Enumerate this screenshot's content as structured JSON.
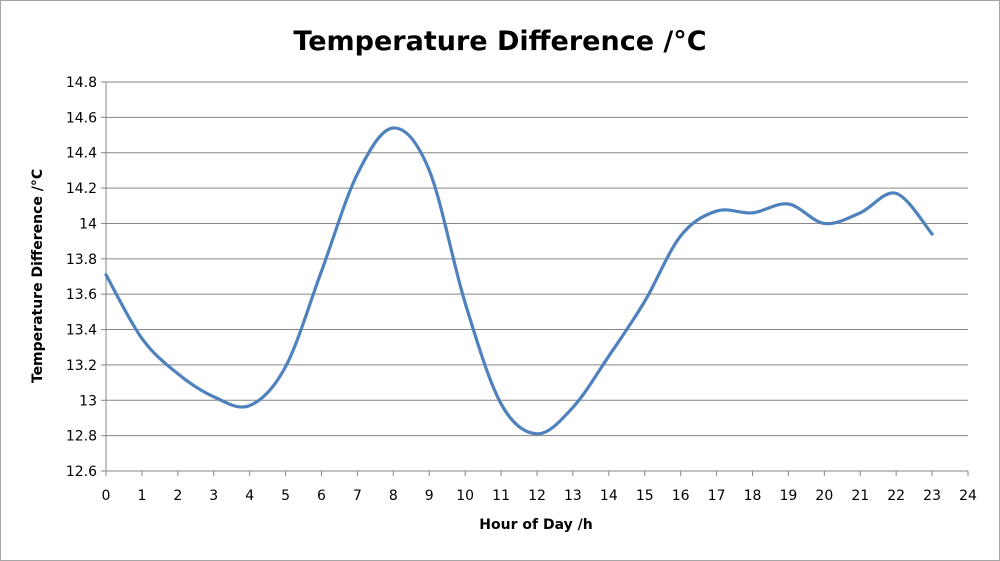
{
  "chart_data": {
    "type": "line",
    "title": "Temperature Difference /°C",
    "xlabel": "Hour of Day /h",
    "ylabel": "Temperature Difference /°C",
    "xlim": [
      0,
      24
    ],
    "ylim": [
      12.6,
      14.8
    ],
    "x_ticks": [
      "0",
      "1",
      "2",
      "3",
      "4",
      "5",
      "6",
      "7",
      "8",
      "9",
      "10",
      "11",
      "12",
      "13",
      "14",
      "15",
      "16",
      "17",
      "18",
      "19",
      "20",
      "21",
      "22",
      "23",
      "24"
    ],
    "y_ticks": [
      "12.6",
      "12.8",
      "13",
      "13.2",
      "13.4",
      "13.6",
      "13.8",
      "14",
      "14.2",
      "14.4",
      "14.6",
      "14.8"
    ],
    "grid": true,
    "legend": false,
    "smooth": true,
    "series_color": "#4f81bd",
    "grid_color": "#868686",
    "series": [
      {
        "x": [
          0,
          1,
          2,
          3,
          4,
          5,
          6,
          7,
          8,
          9,
          10,
          11,
          12,
          13,
          14,
          15,
          16,
          17,
          18,
          19,
          20,
          21,
          22,
          23
        ],
        "values": [
          13.71,
          13.35,
          13.15,
          13.02,
          12.97,
          13.19,
          13.73,
          14.28,
          14.54,
          14.3,
          13.55,
          12.98,
          12.81,
          12.96,
          13.25,
          13.56,
          13.93,
          14.07,
          14.06,
          14.11,
          14.0,
          14.06,
          14.17,
          13.94
        ]
      }
    ]
  }
}
